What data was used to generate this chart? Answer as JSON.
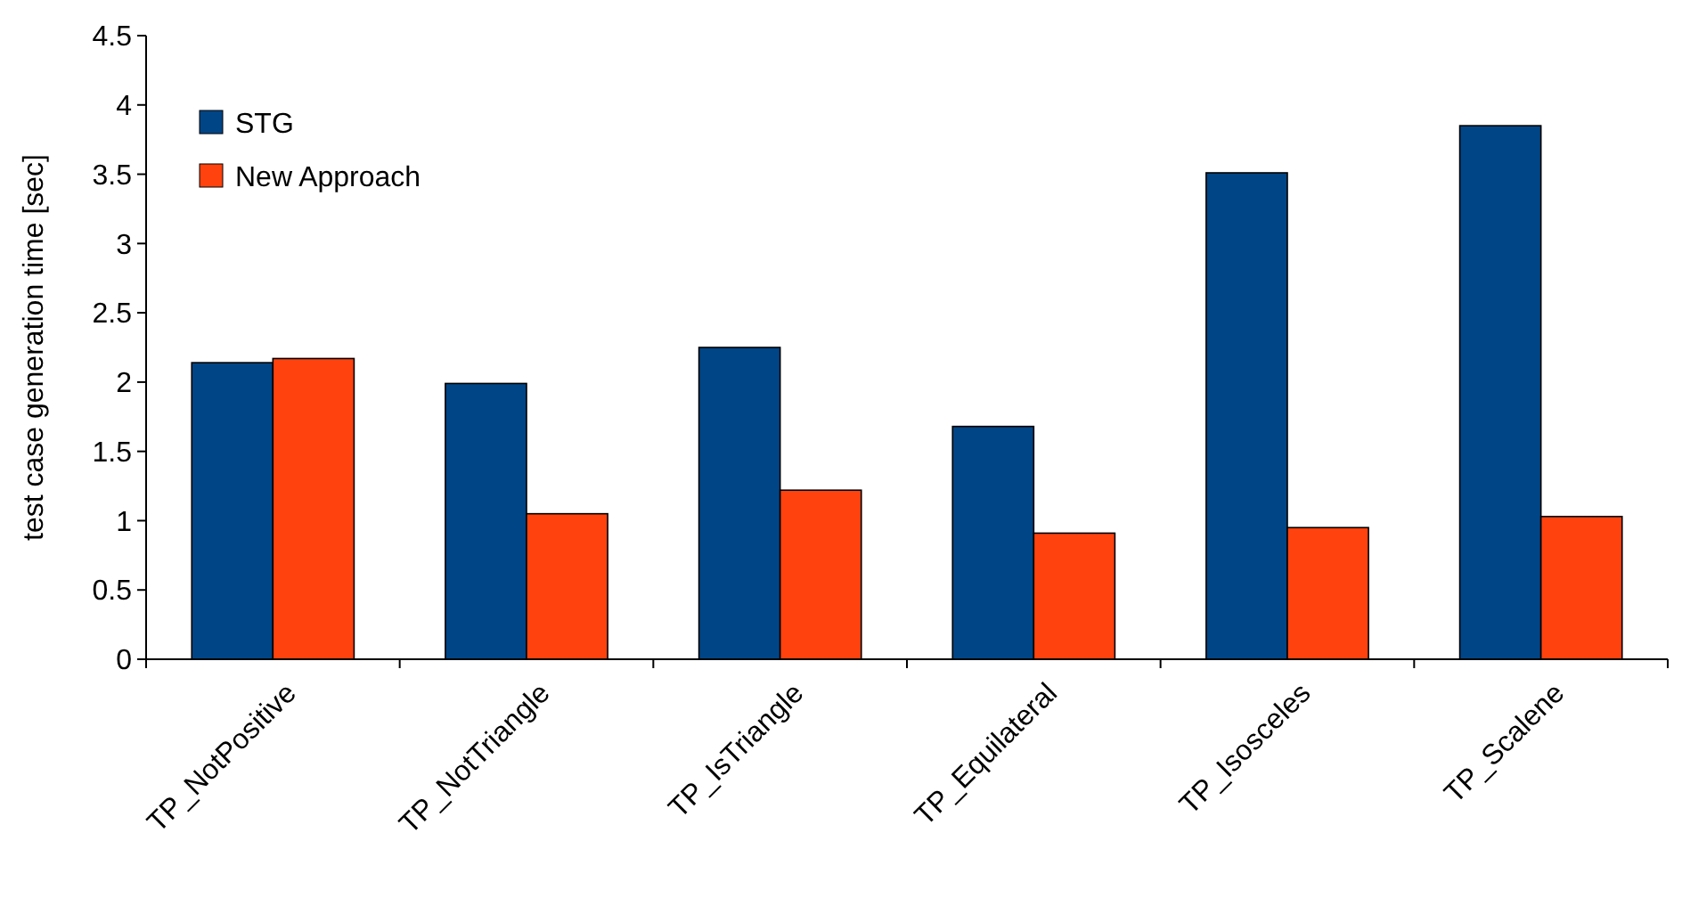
{
  "chart_data": {
    "type": "bar",
    "ylabel": "test case generation time [sec]",
    "categories": [
      "TP_NotPositive",
      "TP_NotTriangle",
      "TP_IsTriangle",
      "TP_Equilateral",
      "TP_Isosceles",
      "TP_Scalene"
    ],
    "series": [
      {
        "name": "STG",
        "color": "#004586",
        "values": [
          2.14,
          1.99,
          2.25,
          1.68,
          3.51,
          3.85
        ]
      },
      {
        "name": "New Approach",
        "color": "#ff420e",
        "values": [
          2.17,
          1.05,
          1.22,
          0.91,
          0.95,
          1.03
        ]
      }
    ],
    "ylim": [
      0,
      4.5
    ],
    "yticks": [
      0,
      0.5,
      1,
      1.5,
      2,
      2.5,
      3,
      3.5,
      4,
      4.5
    ],
    "legend": "top left",
    "grid": false
  }
}
